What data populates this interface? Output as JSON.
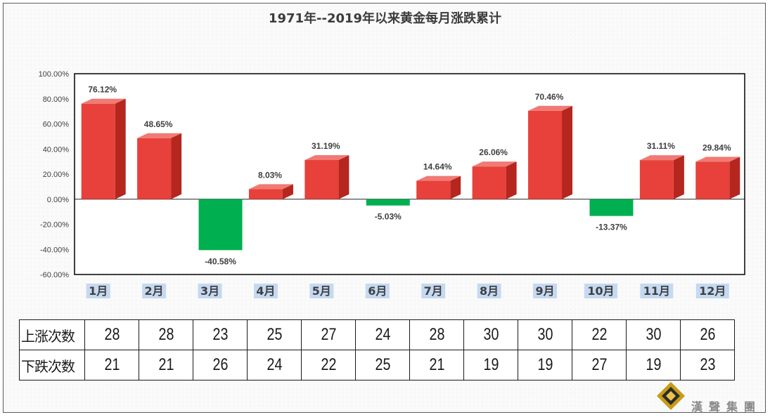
{
  "chart_data": {
    "type": "bar",
    "title": "1971年--2019年以来黄金每月涨跌累计",
    "categories": [
      "1月",
      "2月",
      "3月",
      "4月",
      "5月",
      "6月",
      "7月",
      "8月",
      "9月",
      "10月",
      "11月",
      "12月"
    ],
    "values": [
      76.12,
      48.65,
      -40.58,
      8.03,
      31.19,
      -5.03,
      14.64,
      26.06,
      70.46,
      -13.37,
      31.11,
      29.84
    ],
    "value_labels": [
      "76.12%",
      "48.65%",
      "-40.58%",
      "8.03%",
      "31.19%",
      "-5.03%",
      "14.64%",
      "26.06%",
      "70.46%",
      "-13.37%",
      "31.11%",
      "29.84%"
    ],
    "ylim": [
      -60,
      100
    ],
    "yticks": [
      100,
      80,
      60,
      40,
      20,
      0,
      -20,
      -40,
      -60
    ],
    "ytick_labels": [
      "100.00%",
      "80.00%",
      "60.00%",
      "40.00%",
      "20.00%",
      "0.00%",
      "-20.00%",
      "-40.00%",
      "-60.00%"
    ],
    "colors": {
      "positive": "#e8403a",
      "negative": "#00b050"
    },
    "grid": false
  },
  "table": {
    "rows": [
      {
        "label": "上涨次数",
        "values": [
          "28",
          "28",
          "23",
          "25",
          "27",
          "24",
          "28",
          "30",
          "30",
          "22",
          "30",
          "26"
        ]
      },
      {
        "label": "下跌次数",
        "values": [
          "21",
          "21",
          "26",
          "24",
          "22",
          "25",
          "21",
          "19",
          "19",
          "27",
          "19",
          "23"
        ]
      }
    ]
  },
  "logo": {
    "text": "漢聲集團"
  }
}
